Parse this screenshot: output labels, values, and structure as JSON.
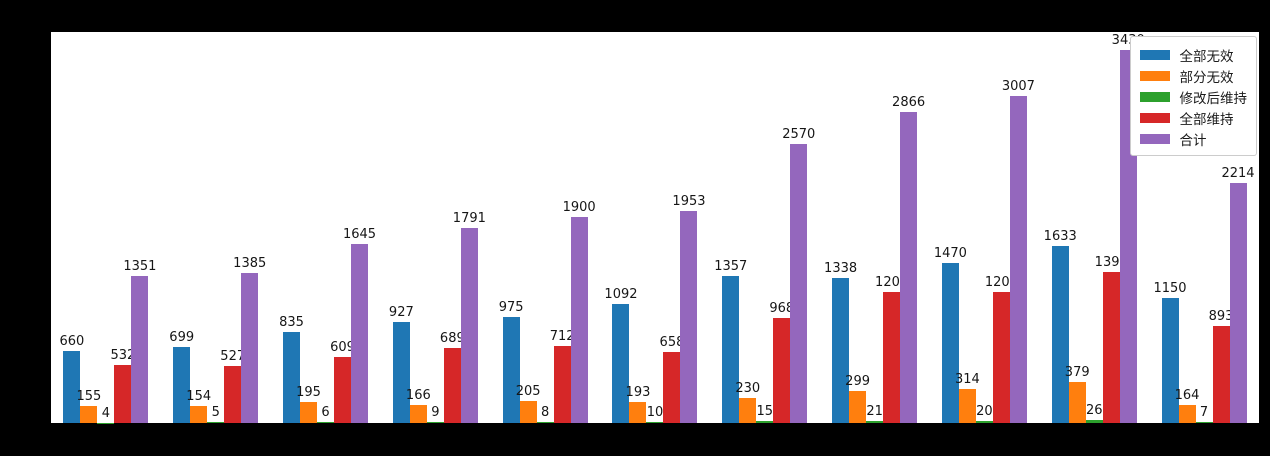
{
  "figure": {
    "background_color": "#000000",
    "plot_background_color": "#ffffff",
    "label_text_color": "#161616",
    "legend_border_color": "#cccccc"
  },
  "chart_data": {
    "type": "bar",
    "grouped": true,
    "n_groups": 11,
    "categories": [
      "",
      "",
      "",
      "",
      "",
      "",
      "",
      "",
      "",
      "",
      ""
    ],
    "categories_note": "x tick labels not visible (black text on black background)",
    "series": [
      {
        "name": "全部无效",
        "color": "#1f77b4",
        "values": [
          660,
          699,
          835,
          927,
          975,
          1092,
          1357,
          1338,
          1470,
          1633,
          1150
        ]
      },
      {
        "name": "部分无效",
        "color": "#ff7f0e",
        "values": [
          155,
          154,
          195,
          166,
          205,
          193,
          230,
          299,
          314,
          379,
          164
        ]
      },
      {
        "name": "修改后维持",
        "color": "#2ca02c",
        "values": [
          4,
          5,
          6,
          9,
          8,
          10,
          15,
          21,
          20,
          26,
          7
        ]
      },
      {
        "name": "全部维持",
        "color": "#d62728",
        "values": [
          532,
          527,
          609,
          689,
          712,
          658,
          968,
          1208,
          1203,
          1392,
          893
        ]
      },
      {
        "name": "合计",
        "color": "#9467bd",
        "values": [
          1351,
          1385,
          1645,
          1791,
          1900,
          1953,
          2570,
          2866,
          3007,
          3430,
          2214
        ]
      }
    ],
    "bar_value_labels_shown": true,
    "title": "",
    "xlabel": "",
    "ylabel": "",
    "ylim": [
      0,
      3600
    ],
    "grid": false,
    "legend": {
      "position": "upper-right",
      "entries": [
        "全部无效",
        "部分无效",
        "修改后维持",
        "全部维持",
        "合计"
      ]
    }
  }
}
